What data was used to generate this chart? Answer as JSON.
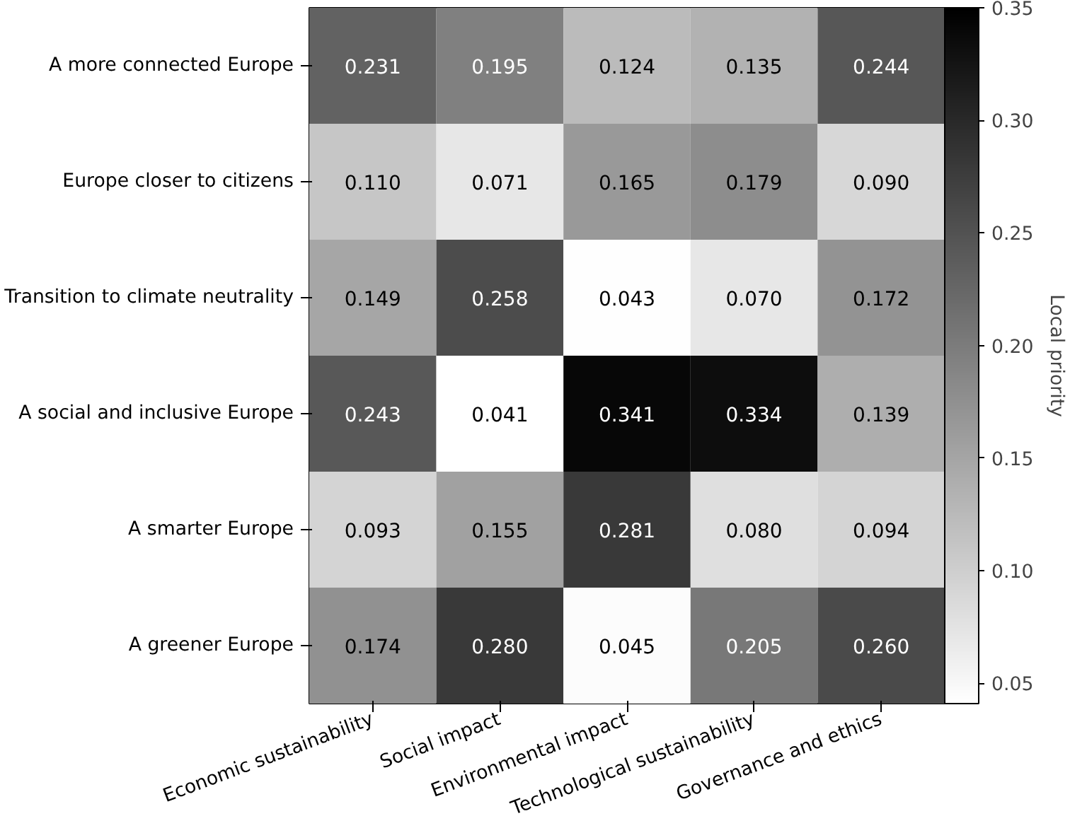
{
  "chart_data": {
    "type": "heatmap",
    "clabel": "Local priority",
    "categories": [
      "Economic sustainability",
      "Social impact",
      "Environmental impact",
      "Technological sustainability",
      "Governance and ethics"
    ],
    "y_categories": [
      "A more connected Europe",
      "Europe closer to citizens",
      "Transition to climate neutrality",
      "A social and inclusive Europe",
      "A smarter Europe",
      "A greener Europe"
    ],
    "cells": [
      [
        0.231,
        0.195,
        0.124,
        0.135,
        0.244
      ],
      [
        0.11,
        0.071,
        0.165,
        0.179,
        0.09
      ],
      [
        0.149,
        0.258,
        0.043,
        0.07,
        0.172
      ],
      [
        0.243,
        0.041,
        0.341,
        0.334,
        0.139
      ],
      [
        0.093,
        0.155,
        0.281,
        0.08,
        0.094
      ],
      [
        0.174,
        0.28,
        0.045,
        0.205,
        0.26
      ]
    ],
    "cell_labels": [
      [
        "0.231",
        "0.195",
        "0.124",
        "0.135",
        "0.244"
      ],
      [
        "0.110",
        "0.071",
        "0.165",
        "0.179",
        "0.090"
      ],
      [
        "0.149",
        "0.258",
        "0.043",
        "0.070",
        "0.172"
      ],
      [
        "0.243",
        "0.041",
        "0.341",
        "0.334",
        "0.139"
      ],
      [
        "0.093",
        "0.155",
        "0.281",
        "0.080",
        "0.094"
      ],
      [
        "0.174",
        "0.280",
        "0.045",
        "0.205",
        "0.260"
      ]
    ],
    "clim": [
      0.041,
      0.35
    ],
    "cticks": [
      {
        "value": 0.05,
        "label": "0.05"
      },
      {
        "value": 0.1,
        "label": "0.10"
      },
      {
        "value": 0.15,
        "label": "0.15"
      },
      {
        "value": 0.2,
        "label": "0.20"
      },
      {
        "value": 0.25,
        "label": "0.25"
      },
      {
        "value": 0.3,
        "label": "0.30"
      },
      {
        "value": 0.35,
        "label": "0.35"
      }
    ],
    "data_labels": true
  }
}
